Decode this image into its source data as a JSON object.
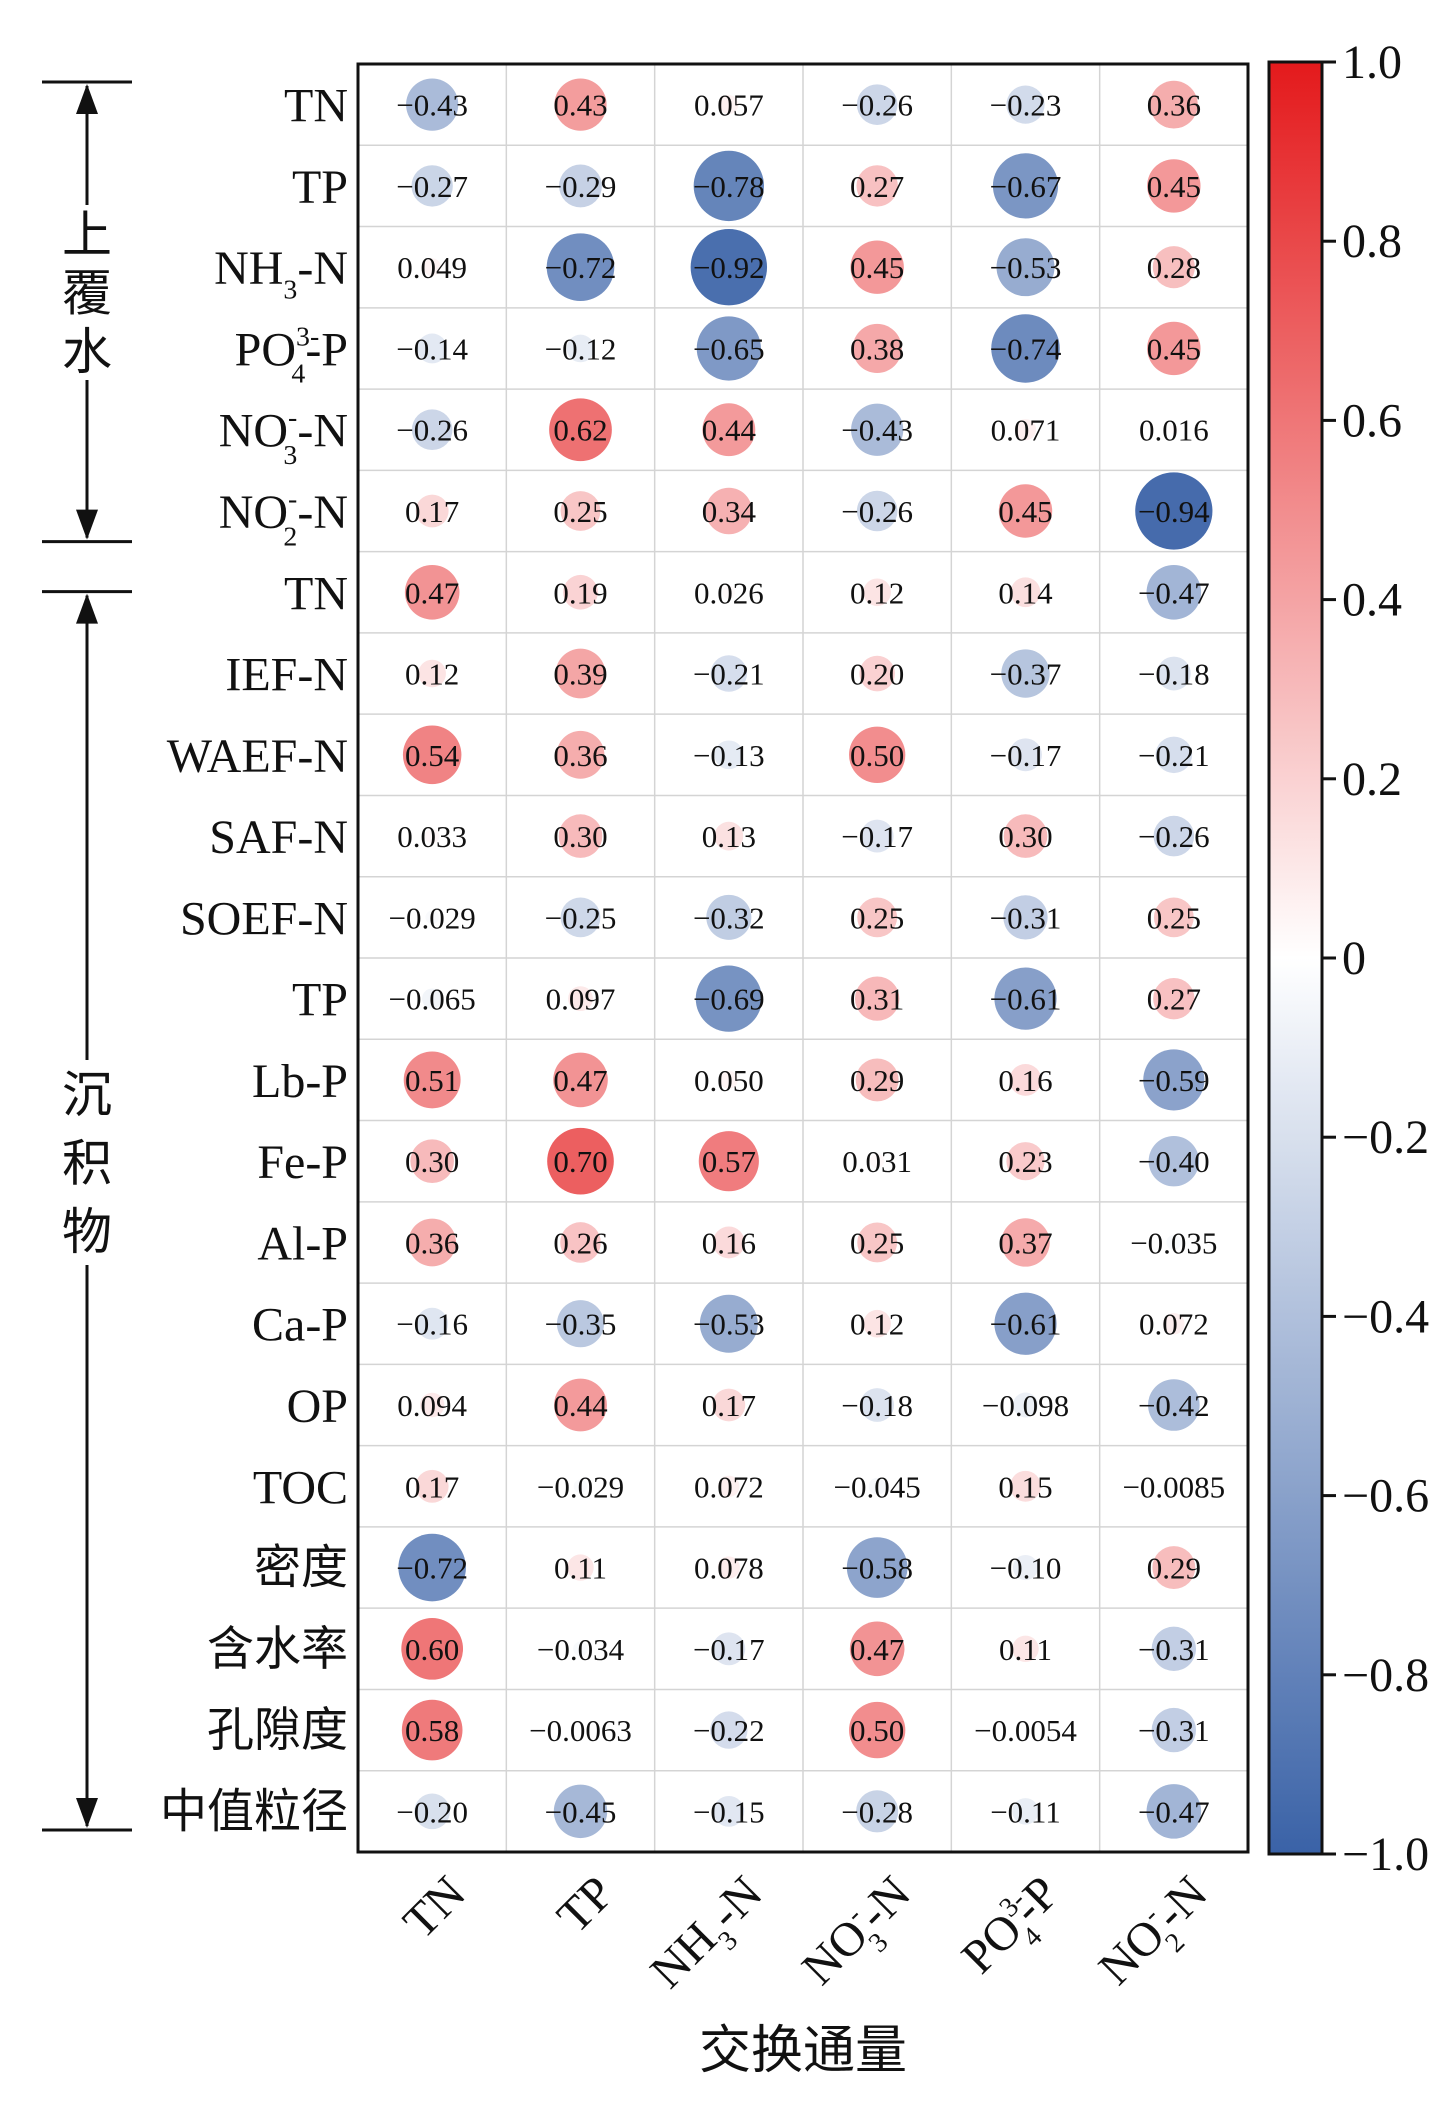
{
  "chart_data": {
    "type": "heatmap",
    "title": "",
    "xlabel": "交换通量",
    "group_labels": [
      "上覆水",
      "沉积物"
    ],
    "columns": [
      {
        "base": "TN",
        "sup": "",
        "sub": "",
        "tail": ""
      },
      {
        "base": "TP",
        "sup": "",
        "sub": "",
        "tail": ""
      },
      {
        "base": "NH",
        "sup": "",
        "sub": "3",
        "tail": "-N"
      },
      {
        "base": "NO",
        "sup": "-",
        "sub": "3",
        "tail": "-N"
      },
      {
        "base": "PO",
        "sup": "3-",
        "sub": "4",
        "tail": "-P"
      },
      {
        "base": "NO",
        "sup": "-",
        "sub": "2",
        "tail": "-N"
      }
    ],
    "rows": [
      {
        "group": "上覆水",
        "base": "TN",
        "sup": "",
        "sub": "",
        "tail": ""
      },
      {
        "group": "上覆水",
        "base": "TP",
        "sup": "",
        "sub": "",
        "tail": ""
      },
      {
        "group": "上覆水",
        "base": "NH",
        "sup": "",
        "sub": "3",
        "tail": "-N"
      },
      {
        "group": "上覆水",
        "base": "PO",
        "sup": "3-",
        "sub": "4",
        "tail": "-P"
      },
      {
        "group": "上覆水",
        "base": "NO",
        "sup": "-",
        "sub": "3",
        "tail": "-N"
      },
      {
        "group": "上覆水",
        "base": "NO",
        "sup": "-",
        "sub": "2",
        "tail": "-N"
      },
      {
        "group": "沉积物",
        "base": "TN",
        "sup": "",
        "sub": "",
        "tail": ""
      },
      {
        "group": "沉积物",
        "base": "IEF-N",
        "sup": "",
        "sub": "",
        "tail": ""
      },
      {
        "group": "沉积物",
        "base": "WAEF-N",
        "sup": "",
        "sub": "",
        "tail": ""
      },
      {
        "group": "沉积物",
        "base": "SAF-N",
        "sup": "",
        "sub": "",
        "tail": ""
      },
      {
        "group": "沉积物",
        "base": "SOEF-N",
        "sup": "",
        "sub": "",
        "tail": ""
      },
      {
        "group": "沉积物",
        "base": "TP",
        "sup": "",
        "sub": "",
        "tail": ""
      },
      {
        "group": "沉积物",
        "base": "Lb-P",
        "sup": "",
        "sub": "",
        "tail": ""
      },
      {
        "group": "沉积物",
        "base": "Fe-P",
        "sup": "",
        "sub": "",
        "tail": ""
      },
      {
        "group": "沉积物",
        "base": "Al-P",
        "sup": "",
        "sub": "",
        "tail": ""
      },
      {
        "group": "沉积物",
        "base": "Ca-P",
        "sup": "",
        "sub": "",
        "tail": ""
      },
      {
        "group": "沉积物",
        "base": "OP",
        "sup": "",
        "sub": "",
        "tail": ""
      },
      {
        "group": "沉积物",
        "base": "TOC",
        "sup": "",
        "sub": "",
        "tail": ""
      },
      {
        "group": "沉积物",
        "base": "密度",
        "sup": "",
        "sub": "",
        "tail": ""
      },
      {
        "group": "沉积物",
        "base": "含水率",
        "sup": "",
        "sub": "",
        "tail": ""
      },
      {
        "group": "沉积物",
        "base": "孔隙度",
        "sup": "",
        "sub": "",
        "tail": ""
      },
      {
        "group": "沉积物",
        "base": "中值粒径",
        "sup": "",
        "sub": "",
        "tail": ""
      }
    ],
    "values": [
      [
        "−0.43",
        "0.43",
        "0.057",
        "−0.26",
        "−0.23",
        "0.36"
      ],
      [
        "−0.27",
        "−0.29",
        "−0.78",
        "0.27",
        "−0.67",
        "0.45"
      ],
      [
        "0.049",
        "−0.72",
        "−0.92",
        "0.45",
        "−0.53",
        "0.28"
      ],
      [
        "−0.14",
        "−0.12",
        "−0.65",
        "0.38",
        "−0.74",
        "0.45"
      ],
      [
        "−0.26",
        "0.62",
        "0.44",
        "−0.43",
        "0.071",
        "0.016"
      ],
      [
        "0.17",
        "0.25",
        "0.34",
        "−0.26",
        "0.45",
        "−0.94"
      ],
      [
        "0.47",
        "0.19",
        "0.026",
        "0.12",
        "0.14",
        "−0.47"
      ],
      [
        "0.12",
        "0.39",
        "−0.21",
        "0.20",
        "−0.37",
        "−0.18"
      ],
      [
        "0.54",
        "0.36",
        "−0.13",
        "0.50",
        "−0.17",
        "−0.21"
      ],
      [
        "0.033",
        "0.30",
        "0.13",
        "−0.17",
        "0.30",
        "−0.26"
      ],
      [
        "−0.029",
        "−0.25",
        "−0.32",
        "0.25",
        "−0.31",
        "0.25"
      ],
      [
        "−0.065",
        "0.097",
        "−0.69",
        "0.31",
        "−0.61",
        "0.27"
      ],
      [
        "0.51",
        "0.47",
        "0.050",
        "0.29",
        "0.16",
        "−0.59"
      ],
      [
        "0.30",
        "0.70",
        "0.57",
        "0.031",
        "0.23",
        "−0.40"
      ],
      [
        "0.36",
        "0.26",
        "0.16",
        "0.25",
        "0.37",
        "−0.035"
      ],
      [
        "−0.16",
        "−0.35",
        "−0.53",
        "0.12",
        "−0.61",
        "0.072"
      ],
      [
        "0.094",
        "0.44",
        "0.17",
        "−0.18",
        "−0.098",
        "−0.42"
      ],
      [
        "0.17",
        "−0.029",
        "0.072",
        "−0.045",
        "0.15",
        "−0.0085"
      ],
      [
        "−0.72",
        "0.11",
        "0.078",
        "−0.58",
        "−0.10",
        "0.29"
      ],
      [
        "0.60",
        "−0.034",
        "−0.17",
        "0.47",
        "0.11",
        "−0.31"
      ],
      [
        "0.58",
        "−0.0063",
        "−0.22",
        "0.50",
        "−0.0054",
        "−0.31"
      ],
      [
        "−0.20",
        "−0.45",
        "−0.15",
        "−0.28",
        "−0.11",
        "−0.47"
      ]
    ],
    "colorbar": {
      "range": [
        -1.0,
        1.0
      ],
      "ticks": [
        "1.0",
        "0.8",
        "0.6",
        "0.4",
        "0.2",
        "0",
        "−0.2",
        "−0.4",
        "−0.6",
        "−0.8",
        "−1.0"
      ],
      "colors": {
        "negative": "#3a62a7",
        "zero": "#ffffff",
        "positive": "#e41a1c"
      }
    },
    "grid": true,
    "legend_position": "right"
  }
}
